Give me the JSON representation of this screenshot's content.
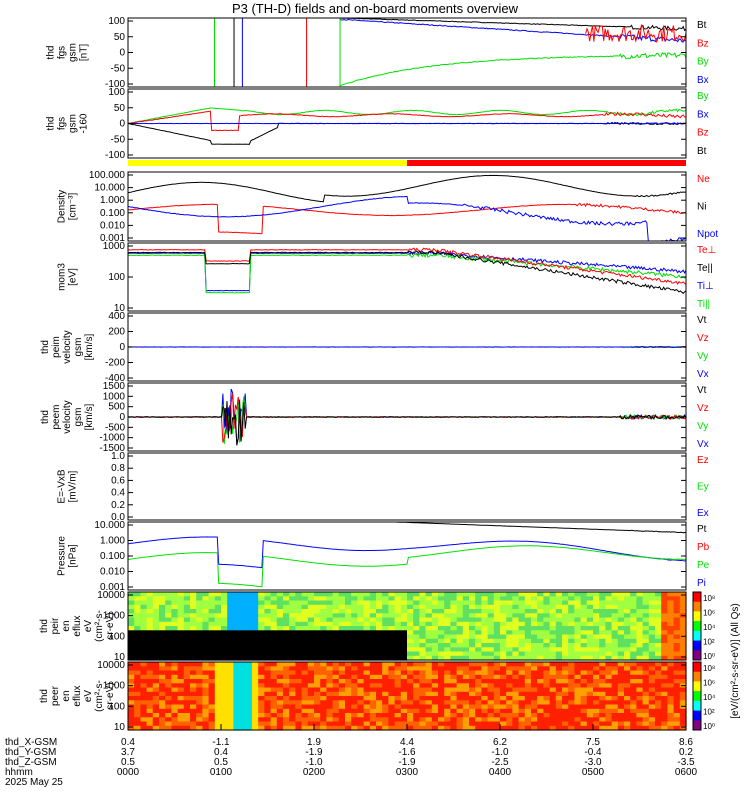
{
  "title": "P3 (TH-D) fields and on-board moments overview",
  "date_label": "2025 May 25",
  "colorbar_label": "[eV/(cm²-s-sr-eV)] (All Qs)",
  "colorbar_ticks": [
    "10⁸",
    "10⁶",
    "10⁴",
    "10²",
    "10⁰"
  ],
  "colors": {
    "black": "#000000",
    "red": "#ff0000",
    "green": "#00e000",
    "blue": "#0000ff",
    "yellow": "#ffff00"
  },
  "chart_data": [
    {
      "type": "line",
      "id": "fgs",
      "ylabel": [
        "thd",
        "fgs",
        "gsm",
        "[nT]"
      ],
      "yticks": [
        "100",
        "50",
        "0",
        "-50",
        "-100"
      ],
      "ylim": [
        -100,
        100
      ],
      "legend": [
        {
          "label": "Bt",
          "color": "#000000"
        },
        {
          "label": "Bz",
          "color": "#ff0000"
        },
        {
          "label": "By",
          "color": "#00e000"
        },
        {
          "label": "Bx",
          "color": "#0000ff"
        }
      ]
    },
    {
      "type": "line",
      "id": "fgs_lim",
      "ylabel": [
        "thd",
        "fgs",
        "gsm",
        "-160"
      ],
      "yticks": [
        "100",
        "50",
        "0",
        "-50",
        "-100"
      ],
      "ylim": [
        -120,
        120
      ],
      "legend": [
        {
          "label": "By",
          "color": "#00e000"
        },
        {
          "label": "Bx",
          "color": "#0000ff"
        },
        {
          "label": "Bz",
          "color": "#ff0000"
        },
        {
          "label": "Bt",
          "color": "#000000"
        }
      ]
    },
    {
      "type": "line",
      "id": "density",
      "ylabel": [
        "Density",
        "[cm⁻³]"
      ],
      "yticks": [
        "100.000",
        "10.000",
        "1.000",
        "0.100",
        "0.010",
        "0.001"
      ],
      "log": true,
      "legend": [
        {
          "label": "Ne",
          "color": "#ff0000"
        },
        {
          "label": "Ni",
          "color": "#000000"
        },
        {
          "label": "Npot",
          "color": "#0000ff"
        }
      ]
    },
    {
      "type": "line",
      "id": "temp",
      "ylabel": [
        "mom3",
        "[eV]"
      ],
      "yticks": [
        "1000",
        "100",
        "10"
      ],
      "log": true,
      "legend": [
        {
          "label": "Te⊥",
          "color": "#ff0000"
        },
        {
          "label": "Te||",
          "color": "#000000"
        },
        {
          "label": "Ti⊥",
          "color": "#0000ff"
        },
        {
          "label": "Ti||",
          "color": "#00e000"
        }
      ]
    },
    {
      "type": "line",
      "id": "peim",
      "ylabel": [
        "thd",
        "peim",
        "velocity",
        "gsm",
        "[km/s]"
      ],
      "yticks": [
        "400",
        "200",
        "0",
        "-200",
        "-400"
      ],
      "ylim": [
        -500,
        500
      ],
      "legend": [
        {
          "label": "Vt",
          "color": "#000000"
        },
        {
          "label": "Vz",
          "color": "#ff0000"
        },
        {
          "label": "Vy",
          "color": "#00e000"
        },
        {
          "label": "Vx",
          "color": "#0000ff"
        }
      ]
    },
    {
      "type": "line",
      "id": "peem",
      "ylabel": [
        "thd",
        "peem",
        "velocity",
        "gsm",
        "[km/s]"
      ],
      "yticks": [
        "1500",
        "1000",
        "500",
        "0",
        "-500",
        "-1000",
        "-1500"
      ],
      "ylim": [
        -1500,
        1500
      ],
      "legend": [
        {
          "label": "Vt",
          "color": "#000000"
        },
        {
          "label": "Vz",
          "color": "#ff0000"
        },
        {
          "label": "Vy",
          "color": "#00e000"
        },
        {
          "label": "Vx",
          "color": "#0000ff"
        }
      ]
    },
    {
      "type": "line",
      "id": "efield",
      "ylabel": [
        "E=-VxB",
        "[mV/m]"
      ],
      "yticks": [
        "1.0",
        "0.8",
        "0.6",
        "0.4",
        "0.2",
        "0.0"
      ],
      "ylim": [
        0,
        1
      ],
      "legend": [
        {
          "label": "Ez",
          "color": "#ff0000"
        },
        {
          "label": "Ey",
          "color": "#00e000"
        },
        {
          "label": "Ex",
          "color": "#0000ff"
        }
      ]
    },
    {
      "type": "line",
      "id": "pressure",
      "ylabel": [
        "Pressure",
        "[nPa]"
      ],
      "yticks": [
        "10.000",
        "1.000",
        "0.100",
        "0.010",
        "0.001"
      ],
      "log": true,
      "legend": [
        {
          "label": "Pt",
          "color": "#000000"
        },
        {
          "label": "Pb",
          "color": "#ff0000"
        },
        {
          "label": "Pe",
          "color": "#00e000"
        },
        {
          "label": "Pi",
          "color": "#0000ff"
        }
      ]
    },
    {
      "type": "heatmap",
      "id": "peir",
      "ylabel": [
        "thd",
        "peir",
        "en",
        "eflux",
        "eV",
        "(cm²-s-",
        "sr-eV)"
      ],
      "yticks": [
        "10000",
        "1000",
        "100",
        "10"
      ]
    },
    {
      "type": "heatmap",
      "id": "peer",
      "ylabel": [
        "thd",
        "peer",
        "en",
        "eflux",
        "eV",
        "(cm²-s-",
        "sr-eV)"
      ],
      "yticks": [
        "10000",
        "1000",
        "100",
        "10"
      ]
    }
  ],
  "xaxis": {
    "row_labels": [
      "thd_X-GSM",
      "thd_Y-GSM",
      "thd_Z-GSM",
      "hhmm"
    ],
    "columns": [
      [
        "0.4",
        "3.7",
        "0.5",
        "0000"
      ],
      [
        "-1.1",
        "0.4",
        "0.5",
        "0100"
      ],
      [
        "1.9",
        "-1.9",
        "-1.0",
        "0200"
      ],
      [
        "4.4",
        "-1.6",
        "-1.9",
        "0300"
      ],
      [
        "6.2",
        "-1.0",
        "-2.5",
        "0400"
      ],
      [
        "7.5",
        "-0.4",
        "-3.0",
        "0500"
      ],
      [
        "8.6",
        "0.2",
        "-3.5",
        "0600"
      ]
    ]
  }
}
